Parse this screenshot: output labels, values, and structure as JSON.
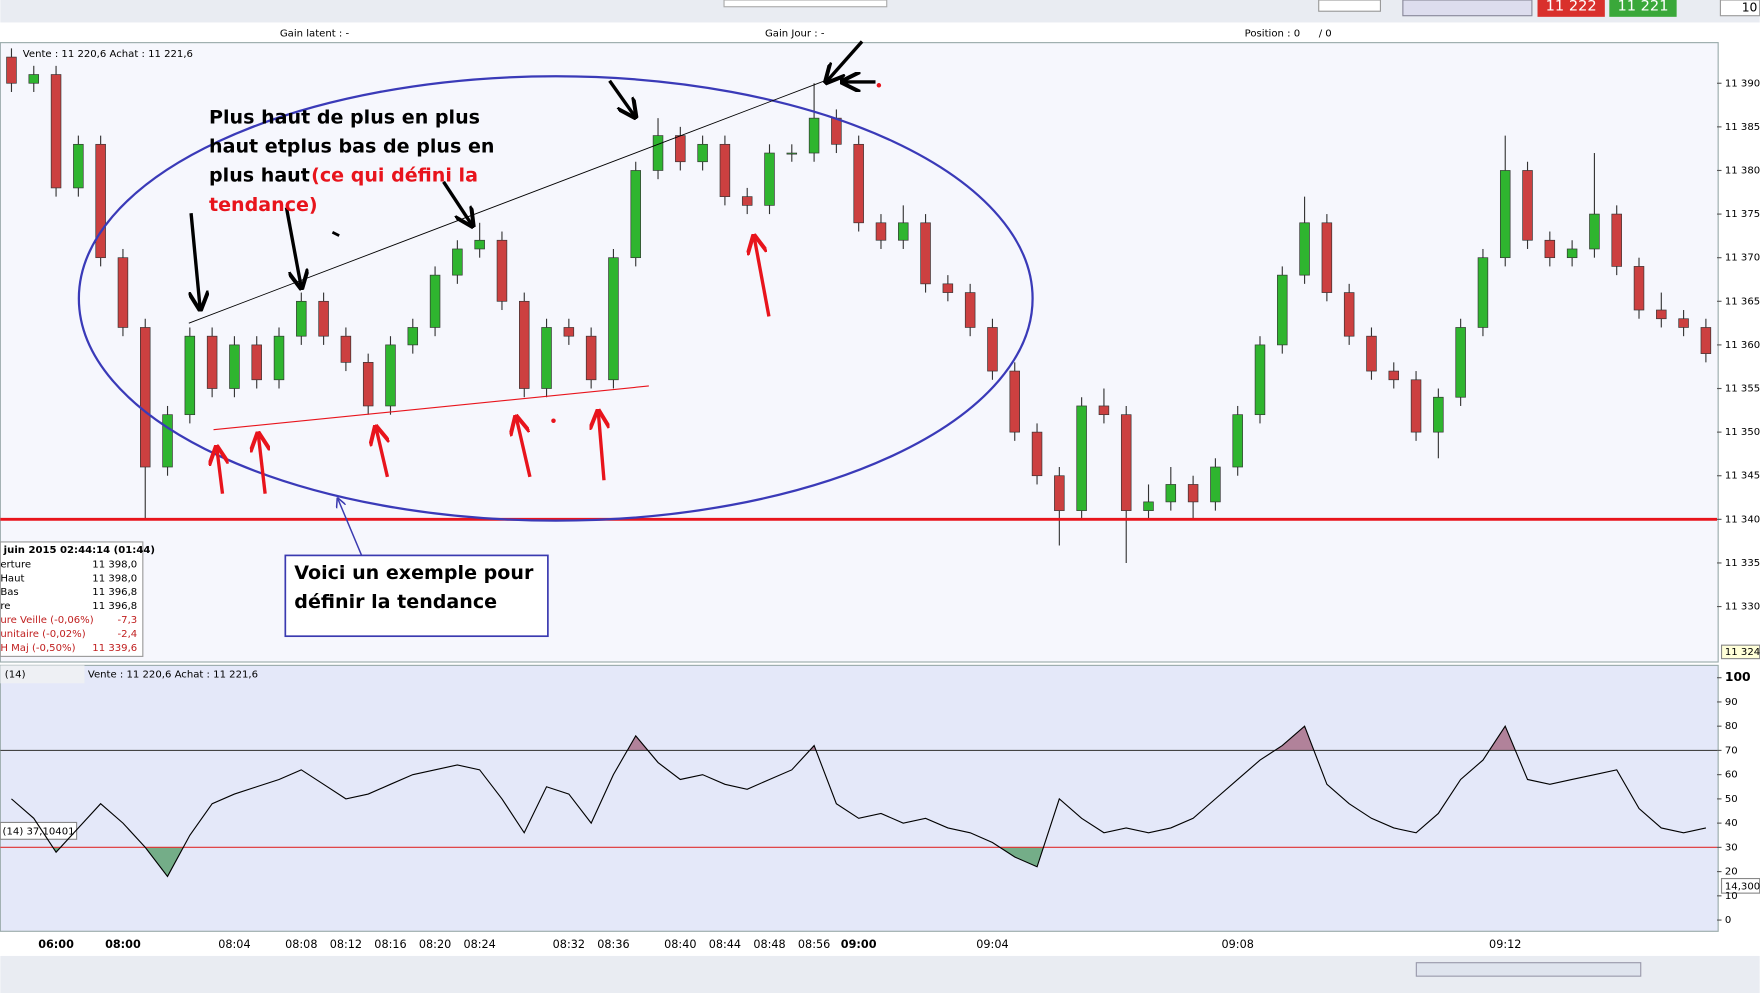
{
  "header": {
    "gain_latent": "Gain latent : -",
    "gain_jour": "Gain Jour : -",
    "position": "Position : 0",
    "position_total": "/ 0",
    "quote": "Vente : 11 220,6 Achat : 11 221,6",
    "sell_price": "11 222",
    "buy_price": "11 221",
    "quantity": "10"
  },
  "info_box": {
    "title": "juin 2015 02:44:14 (01:44)",
    "rows": [
      [
        "erture",
        "11 398,0"
      ],
      [
        "Haut",
        "11 398,0"
      ],
      [
        "Bas",
        "11 396,8"
      ],
      [
        "re",
        "11 396,8"
      ],
      [
        "ure Veille (-0,06%)",
        "-7,3"
      ],
      [
        "unitaire (-0,02%)",
        "-2,4"
      ],
      [
        "H Maj (-0,50%)",
        "11 339,6"
      ]
    ]
  },
  "annotation": {
    "black": [
      "Plus haut de plus en plus",
      "haut etplus bas de plus en",
      "plus haut"
    ],
    "red": [
      "(ce qui défini la",
      "tendance)"
    ]
  },
  "note_box": [
    "Voici un exemple pour",
    "définir la tendance"
  ],
  "price_box": "11 324,",
  "rsi_panel": {
    "title": "(14)",
    "quote": "Vente : 11 220,6 Achat : 11 221,6",
    "value_label": "(14)  37,10401",
    "box": "14,300"
  },
  "chart_data": [
    {
      "type": "candlestick",
      "categories": [
        null,
        null,
        "06:00",
        null,
        null,
        "08:00",
        null,
        null,
        null,
        null,
        "08:04",
        null,
        null,
        "08:08",
        null,
        "08:12",
        null,
        "08:16",
        null,
        "08:20",
        null,
        "08:24",
        null,
        null,
        null,
        "08:32",
        null,
        "08:36",
        null,
        null,
        "08:40",
        null,
        "08:44",
        null,
        "08:48",
        null,
        "08:56",
        null,
        "09:00",
        null,
        null,
        null,
        null,
        null,
        "09:04",
        null,
        null,
        null,
        null,
        null,
        null,
        null,
        null,
        null,
        null,
        "09:08",
        null,
        null,
        null,
        null,
        null,
        null,
        null,
        null,
        null,
        null,
        null,
        "09:12",
        null,
        null,
        null,
        null,
        null,
        null,
        null,
        null,
        null
      ],
      "open": [
        11393,
        11390,
        11391,
        11378,
        11383,
        11370,
        11362,
        11346,
        11352,
        11361,
        11355,
        11360,
        11356,
        11361,
        11365,
        11361,
        11358,
        11353,
        11360,
        11362,
        11368,
        11371,
        11372,
        11365,
        11355,
        11362,
        11361,
        11356,
        11370,
        11380,
        11384,
        11381,
        11383,
        11377,
        11376,
        11382,
        11382,
        11386,
        11383,
        11374,
        11372,
        11374,
        11367,
        11366,
        11362,
        11357,
        11350,
        11345,
        11341,
        11353,
        11352,
        11341,
        11342,
        11344,
        11342,
        11346,
        11352,
        11360,
        11368,
        11374,
        11366,
        11361,
        11357,
        11356,
        11350,
        11354,
        11362,
        11370,
        11380,
        11372,
        11370,
        11371,
        11375,
        11369,
        11364,
        11363,
        11362
      ],
      "high": [
        11394,
        11392,
        11392,
        11384,
        11384,
        11371,
        11363,
        11353,
        11362,
        11362,
        11361,
        11361,
        11362,
        11366,
        11366,
        11362,
        11359,
        11361,
        11363,
        11369,
        11372,
        11374,
        11373,
        11366,
        11363,
        11363,
        11362,
        11371,
        11381,
        11386,
        11385,
        11384,
        11384,
        11378,
        11383,
        11383,
        11390,
        11387,
        11384,
        11375,
        11376,
        11375,
        11368,
        11367,
        11363,
        11358,
        11351,
        11346,
        11354,
        11355,
        11353,
        11344,
        11346,
        11345,
        11347,
        11353,
        11361,
        11369,
        11377,
        11375,
        11367,
        11362,
        11358,
        11357,
        11355,
        11363,
        11371,
        11384,
        11381,
        11373,
        11372,
        11382,
        11376,
        11370,
        11366,
        11364,
        11363
      ],
      "low": [
        11389,
        11389,
        11377,
        11377,
        11369,
        11361,
        11340,
        11345,
        11351,
        11354,
        11354,
        11355,
        11355,
        11360,
        11360,
        11357,
        11352,
        11352,
        11359,
        11361,
        11367,
        11370,
        11364,
        11354,
        11354,
        11360,
        11355,
        11355,
        11369,
        11379,
        11380,
        11380,
        11376,
        11375,
        11375,
        11381,
        11381,
        11382,
        11373,
        11371,
        11371,
        11366,
        11365,
        11361,
        11356,
        11349,
        11344,
        11337,
        11340,
        11351,
        11335,
        11340,
        11341,
        11340,
        11341,
        11345,
        11351,
        11359,
        11367,
        11365,
        11360,
        11356,
        11355,
        11349,
        11347,
        11353,
        11361,
        11369,
        11371,
        11369,
        11369,
        11370,
        11368,
        11363,
        11362,
        11361,
        11358
      ],
      "close": [
        11390,
        11391,
        11378,
        11383,
        11370,
        11362,
        11346,
        11352,
        11361,
        11355,
        11360,
        11356,
        11361,
        11365,
        11361,
        11358,
        11353,
        11360,
        11362,
        11368,
        11371,
        11372,
        11365,
        11355,
        11362,
        11361,
        11356,
        11370,
        11380,
        11384,
        11381,
        11383,
        11377,
        11376,
        11382,
        11382,
        11386,
        11383,
        11374,
        11372,
        11374,
        11367,
        11366,
        11362,
        11357,
        11350,
        11345,
        11341,
        11353,
        11352,
        11341,
        11342,
        11344,
        11342,
        11346,
        11352,
        11360,
        11368,
        11374,
        11366,
        11361,
        11357,
        11356,
        11350,
        11354,
        11362,
        11370,
        11380,
        11372,
        11370,
        11371,
        11375,
        11369,
        11364,
        11363,
        11362,
        11359
      ],
      "up_color": "#2fb52f",
      "down_color": "#cc4040",
      "ylim": [
        11323.9,
        11394.4
      ],
      "yticks": [
        {
          "value": 11330,
          "label": "11 330"
        },
        {
          "value": 11335,
          "label": "11 335"
        },
        {
          "value": 11340,
          "label": "11 340"
        },
        {
          "value": 11345,
          "label": "11 345"
        },
        {
          "value": 11350,
          "label": "11 350"
        },
        {
          "value": 11355,
          "label": "11 355"
        },
        {
          "value": 11360,
          "label": "11 360"
        },
        {
          "value": 11365,
          "label": "11 365"
        },
        {
          "value": 11370,
          "label": "11 370"
        },
        {
          "value": 11375,
          "label": "11 375"
        },
        {
          "value": 11380,
          "label": "11 380"
        },
        {
          "value": 11385,
          "label": "11 385"
        },
        {
          "value": 11390,
          "label": "11 390"
        }
      ],
      "support_line": 11340,
      "support_color": "#e8141c"
    },
    {
      "type": "line",
      "values": [
        50,
        42,
        28,
        38,
        48,
        40,
        30,
        18,
        35,
        48,
        52,
        55,
        58,
        62,
        56,
        50,
        52,
        56,
        60,
        62,
        64,
        62,
        50,
        36,
        55,
        52,
        40,
        60,
        76,
        65,
        58,
        60,
        56,
        54,
        58,
        62,
        72,
        48,
        42,
        44,
        40,
        42,
        38,
        36,
        32,
        26,
        22,
        50,
        42,
        36,
        38,
        36,
        38,
        42,
        50,
        58,
        66,
        72,
        80,
        56,
        48,
        42,
        38,
        36,
        44,
        58,
        66,
        80,
        58,
        56,
        58,
        60,
        62,
        46,
        38,
        36,
        38
      ],
      "color": "#000000",
      "ylim": [
        0,
        100
      ],
      "yticks": [
        0,
        10,
        20,
        30,
        40,
        50,
        60,
        70,
        80,
        90,
        100
      ],
      "overbought": 70,
      "oversold": 30,
      "overbought_color": "#a0607a",
      "oversold_color": "#4f9a62"
    }
  ]
}
